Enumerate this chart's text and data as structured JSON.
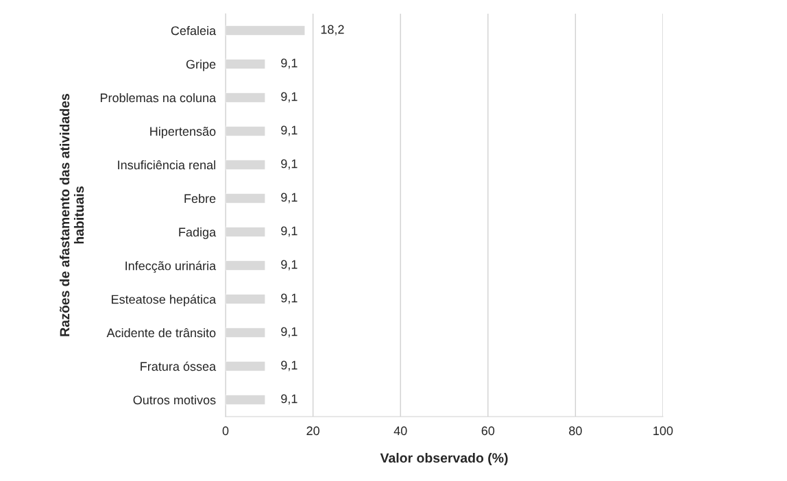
{
  "chart_data": {
    "type": "bar",
    "orientation": "horizontal",
    "categories": [
      "Cefaleia",
      "Gripe",
      "Problemas na coluna",
      "Hipertensão",
      "Insuficiência renal",
      "Febre",
      "Fadiga",
      "Infecção urinária",
      "Esteatose hepática",
      "Acidente de trânsito",
      "Fratura óssea",
      "Outros motivos"
    ],
    "values": [
      18.2,
      9.1,
      9.1,
      9.1,
      9.1,
      9.1,
      9.1,
      9.1,
      9.1,
      9.1,
      9.1,
      9.1
    ],
    "value_labels": [
      "18,2",
      "9,1",
      "9,1",
      "9,1",
      "9,1",
      "9,1",
      "9,1",
      "9,1",
      "9,1",
      "9,1",
      "9,1",
      "9,1"
    ],
    "color": "#d9d9d9",
    "xlim": [
      0,
      100
    ],
    "xticks": [
      0,
      20,
      40,
      60,
      80,
      100
    ],
    "xlabel": "Valor observado (%)",
    "ylabel": "Razões de afastamento das atividades\nhabituais",
    "grid": "x",
    "legend": false
  }
}
